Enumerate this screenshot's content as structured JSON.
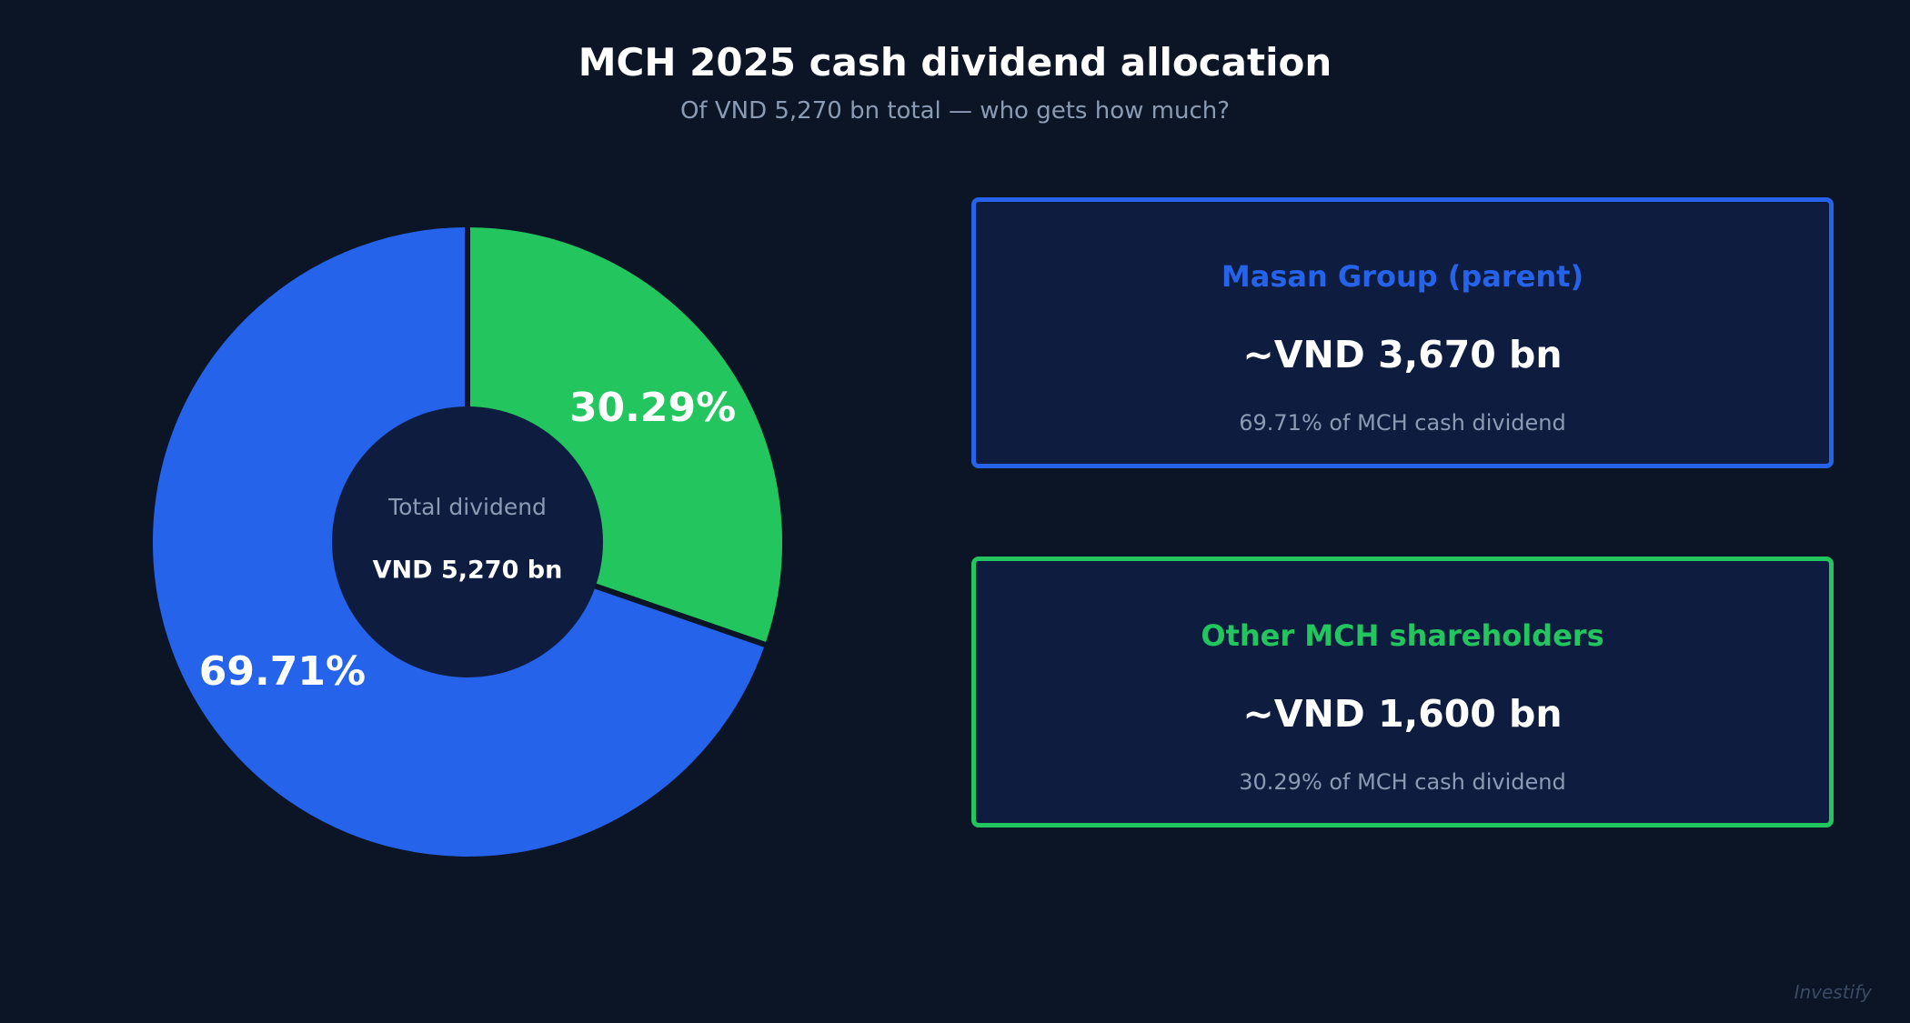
{
  "header": {
    "title": "MCH 2025 cash dividend allocation",
    "subtitle": "Of VND 5,270 bn total — who gets how much?"
  },
  "chart_data": {
    "type": "pie",
    "subtype": "donut",
    "title": "MCH 2025 cash dividend allocation",
    "subtitle": "Of VND 5,270 bn total — who gets how much?",
    "center_label": "Total dividend",
    "center_value": "VND 5,270 bn",
    "slices": [
      {
        "name": "Other MCH shareholders",
        "value": 30.29,
        "label": "30.29%",
        "color": "#22c55e"
      },
      {
        "name": "Masan Group (parent)",
        "value": 69.71,
        "label": "69.71%",
        "color": "#2563eb"
      }
    ]
  },
  "cards": [
    {
      "name": "Masan Group (parent)",
      "value": "~VND 3,670 bn",
      "note": "69.71% of MCH cash dividend",
      "color": "#2563eb"
    },
    {
      "name": "Other MCH shareholders",
      "value": "~VND 1,600 bn",
      "note": "30.29% of MCH cash dividend",
      "color": "#22c55e"
    }
  ],
  "colors": {
    "background": "#0b1526",
    "panel": "#0e1d3f",
    "muted_text": "#8b9bb4"
  },
  "watermark": "Investify"
}
